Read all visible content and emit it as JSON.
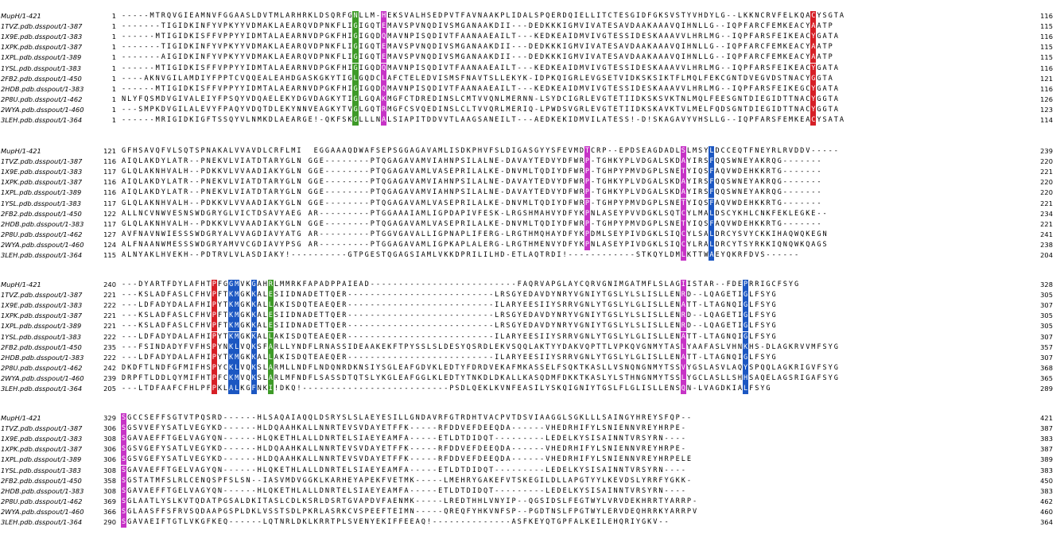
{
  "blocks": [
    {
      "rows": [
        {
          "name": "MupH/1-421",
          "start": "1",
          "end": "116",
          "seq": "-----MTRQVGIEAMNVFGGAASLDVTMLARHRKLDSQRFGNLLM-HEKSVALHSEDPVTFAVNAAKPLIDALSPQERDQIELLITCTESGIDFGKSVSTYVHDYLG--LKKNCRVFELKQACYSGTA"
        },
        {
          "name": "1TVZ.pdb.dsspout/1-387",
          "start": "1",
          "end": "115",
          "seq": "-------TIGIDKINFYVPKYYVDMAKLAEARQVDPNKFLIGIGQTEMAVSPVNQDIVSMGANAAKDII---DEDKKKIGMVIVATESAVDAAKAAAVQIHNLLG--IQPFARCFEMKEACYAATP"
        },
        {
          "name": "1X9E.pdb.dsspout/1-383",
          "start": "1",
          "end": "116",
          "seq": "------MTIGIDKISFFVPPYYIDMTALAEARNVDPGKFHIGIGQDQMAVNPISQDIVTFAANAAEAILT---KEDKEAIDMVIVGTESSIDESKAAAVVLHRLMG--IQPFARSFEIKEACYGATA"
        },
        {
          "name": "1XPK.pdb.dsspout/1-387",
          "start": "1",
          "end": "115",
          "seq": "-------TIGIDKINFYVPKYYVDMAKLAEARQVDPNKFLIGIGQTEMAVSPVNQDIVSMGANAAKDII---DEDKKKIGMVIVATESAVDAAKAAAVQIHNLLG--IQPFARCFEMKEACYAATP"
        },
        {
          "name": "1XPL.pdb.dsspout/1-389",
          "start": "1",
          "end": "115",
          "seq": "-------AIGIDKINFYVPKYYVDMAKLAEARQVDPNKFLIGIGQTEMAVSPVNQDIVSMGANAAKDII---DEDKKKIGMVIVATESAVDAAKAAAVQIHNLLG--IQPFARCFEMKEACYAATP"
        },
        {
          "name": "1YSL.pdb.dsspout/1-383",
          "start": "1",
          "end": "116",
          "seq": "------MTIGIDKISFFVPPYYIDMTALAEARNVDPGKFHIGIGQDQMAVNPISQDIVTFAANAAEAILT---KEDKEAIDMVIVGTESSIDESKAAAVVLHRLMG--IQPFARSFEIKEACYGATA"
        },
        {
          "name": "2FB2.pdb.dsspout/1-450",
          "start": "1",
          "end": "121",
          "seq": "----AKNVGILAMDIYFPPTCVQQEALEAHDGASKGKYTIGLGQDCLAFCTELEDVISMSFNAVTSLLEKYK-IDPKQIGRLEVGSETVIDKSKSIKTFLMQLFEKCGNTDVEGVDSTNACYGGTA"
        },
        {
          "name": "2HDB.pdb.dsspout/1-383",
          "start": "1",
          "end": "116",
          "seq": "------MTIGIDKISFFVPPYYIDMTALAEARNVDPGKFHIGIGQDQMAVNPISQDIVTFAANAAEAILT---KEDKEAIDMVIVGTESSIDESKAAAVVLHRLMG--IQPFARSFEIKEGCYGATA"
        },
        {
          "name": "2P8U.pdb.dsspout/1-462",
          "start": "1",
          "end": "126",
          "seq": "NLYFQSMDVGIVALEIYFPSQYVDQAELEKYDGVDAGKYTIGLGQAKMGFCTDREDINSLCMTVVQNLMERNN-LSYDCIGRLEVGTETIIDKSKSVKTNLMQLFEESGNTDIEGIDTTNACYGGTA"
        },
        {
          "name": "2WYA.pdb.dsspout/1-460",
          "start": "1",
          "end": "123",
          "seq": "---SMPKDVGILALEVYFPAQYVDQTDLEKYNNVEAGKYTVGLGQTRMGFCSVQEDINSLCLTVVQRLMERIQ-LPWDSVGRLEVGTETIIDKSKAVKTVLMELFQDSGNTDIEGIDTTNACYGGTA"
        },
        {
          "name": "3LEH.pdb.dsspout/1-364",
          "start": "1",
          "end": "114",
          "seq": "------MRIGIDKIGFTSSQYVLNMKDLAEARGE!-QKFSKGLLLNALSIAPITDDVVTLAAGSANEILT---AEDKEKIDMVILATESS!-D!SKAGAVYVHSLLG--IQPFARSFEMKEACYSATA"
        }
      ]
    },
    {
      "rows": [
        {
          "name": "MupH/1-421",
          "start": "121",
          "end": "239",
          "seq": "GFHSAVQFVLSQTSPNAKALVVAVDLCRFLMI  EGGAAAQDWAFSEPSGGAGAVAMLISDKPHVFSLDIGASGYYSFEVMDTCRP--EPDSEAGDADLSLMSYLDCCEQTFNEYRLRVDDV-----"
        },
        {
          "name": "1TVZ.pdb.dsspout/1-387",
          "start": "116",
          "end": "220",
          "seq": "AIQLAKDYLATR--PNEKVLVIATDTARYGLN GGE--------PTQGAGAVAMVIAHNPSILALNE-DAVAYTEDVYDFWRP-TGHKYPLVDGALSKDAYIRSFQQSWNEYAKRQG-------"
        },
        {
          "name": "1X9E.pdb.dsspout/1-383",
          "start": "117",
          "end": "221",
          "seq": "GLQLAKNHVALH--PDKKVLVVAADIAKYGLN GGE--------PTQGAGAVAMLVASEPRILALKE-DNVMLTQDIYDFWRP-TGHPYPMVDGPLSNETYIQSFAQVWDEHKKRTG-------"
        },
        {
          "name": "1XPK.pdb.dsspout/1-387",
          "start": "116",
          "end": "220",
          "seq": "AIQLAKDYLATR--PNEKVLVIATDTARYGLN GGE--------PTQGAGAVAMVIAHNPSILALNE-DAVAYTEDVYDFWRP-TGHKYPLVDGALSKDAYIRSFQQSWNEYAKRQG-------"
        },
        {
          "name": "1XPL.pdb.dsspout/1-389",
          "start": "116",
          "end": "220",
          "seq": "AIQLAKDYLATR--PNEKVLVIATDTARYGLN GGE--------PTQGAGAVAMVIAHNPSILALNE-DAVAYTEDVYDFWRP-TGHKYPLVDGALSKDAYIRSFQQSWNEYAKRQG-------"
        },
        {
          "name": "1YSL.pdb.dsspout/1-383",
          "start": "117",
          "end": "221",
          "seq": "GLQLAKNHVALH--PDKKVLVVAADIAKYGLN GGE--------PTQGAGAVAMLVASEPRILALKE-DNVMLTQDIYDFWRP-TGHPYPMVDGPLSNETYIQSFAQVWDEHKKRTG-------"
        },
        {
          "name": "2FB2.pdb.dsspout/1-450",
          "start": "122",
          "end": "234",
          "seq": "ALLNCVNWVESNSWDGRYGLVICTDSAVYAEG AR---------PTGGAAAIAMLIGPDAPIVFESK-LRGSHMAHVYDFYKPNLASEYPVVDGKLSQTCYLMALDSCYKHLCNKFEKLEGKE--"
        },
        {
          "name": "2HDB.pdb.dsspout/1-383",
          "start": "117",
          "end": "221",
          "seq": "GLQLAKNHVALH--PDKKVLVVAADIAKYGLN GGE--------PTQGAGAVAMLVASEPRILALKE-DNVMLTQDIYDFWRP-TGHPYPMVDGPLSNETYIQSFAQVWDEHKKRTG-------"
        },
        {
          "name": "2P8U.pdb.dsspout/1-462",
          "start": "127",
          "end": "241",
          "seq": "AVFNAVNWIESSSWDGRYALVVAGDIAVYATG AR---------PTGGVGAVALLIGPNAPLIFERG-LRGTHMQHAYDFYKPDMLSEYPIVDGKLSIQCYLSALDRCYSVYCKKIHAQWQKEGN"
        },
        {
          "name": "2WYA.pdb.dsspout/1-460",
          "start": "124",
          "end": "238",
          "seq": "ALFNAANWMESSSWDGRYAMVVCGDIAVYPSG AR---------PTGGAGAVAMLIGPKAPLALERG-LRGTHMENVYDFYKPNLASEYPIVDGKLSIQCYLRALDRCYTSYRKKIQNQWKQAGS"
        },
        {
          "name": "3LEH.pdb.dsspout/1-364",
          "start": "115",
          "end": "204",
          "seq": "ALNYAKLHVEKH--PDTRVLVLASDIAKY!----------GTPGESTQGAGSIAMLVKKDPRILILHD-ETLAQTRDI!------------STKQYLDMLKTTWAEYQKRFDVS------"
        }
      ]
    },
    {
      "rows": [
        {
          "name": "MupH/1-421",
          "start": "240",
          "end": "328",
          "seq": "---DYARTFDYLAFHTPFGGMVKGAHRLMMRKFAPADPPAIEAD--------------------------FAQRVAPGLAYCQRVGNIMGATMFLSLAGIISTAR--FDEPRRIGCFSYG"
        },
        {
          "name": "1TVZ.pdb.dsspout/1-387",
          "start": "221",
          "end": "305",
          "seq": "---KSLADFASLCFHVPFTKMGKKALESIIDNADETTQER--------------------------LRSGYEDAVDYNRYVGNIYTGSLYLSLISLLENRD--LQAGETIGLFSYG"
        },
        {
          "name": "1X9E.pdb.dsspout/1-383",
          "start": "222",
          "end": "307",
          "seq": "---LDFADYDALAFHIPYTKMGKKALLAKISDQTEAEQER--------------------------ILARYEESIIYSRRVGNLYTGSLYLGLISLLENATT-LTAGNQIGLFSYG"
        },
        {
          "name": "1XPK.pdb.dsspout/1-387",
          "start": "221",
          "end": "305",
          "seq": "---KSLADFASLCFHVPFTKMGKKALESIIDNADETTQER--------------------------LRSGYEDAVDYNRYVGNIYTGSLYLSLISLLENRD--LQAGETIGLFSYG"
        },
        {
          "name": "1XPL.pdb.dsspout/1-389",
          "start": "221",
          "end": "305",
          "seq": "---KSLADFASLCFHVPFTKMGKKALESIIDNADETTQER--------------------------LRSGYEDAVDYNRYVGNIYTGSLYLSLISLLENRD--LQAGETIGLFSYG"
        },
        {
          "name": "1YSL.pdb.dsspout/1-383",
          "start": "222",
          "end": "307",
          "seq": "---LDFADYDALAFHIPYTKMGKKALLAKISDQTEAEQER--------------------------ILARYEESIIYSRRVGNLYTGSLYLGLISLLENATT-LTAGNQIGLFSYG"
        },
        {
          "name": "2FB2.pdb.dsspout/1-450",
          "start": "235",
          "end": "357",
          "seq": "---FSINDADYFVFHSPYNKLVQKSFARLLYNDFLRNASSIDEAAKEKFTPYSSLSLDESYQSRDLEKVSQQLAKTYYDAKVQPTTLVPKQVGNMYTASLYAAFASLVHNKHS-DLAGKRVVMFSYG"
        },
        {
          "name": "2HDB.pdb.dsspout/1-383",
          "start": "222",
          "end": "307",
          "seq": "---LDFADYDALAFHIPYTKMGKKALLAKISDQTEAEQER--------------------------ILARYEESIIYSRRVGNLYTGSLYLGLISLLENATT-LTAGNQIGLFSYG"
        },
        {
          "name": "2P8U.pdb.dsspout/1-462",
          "start": "242",
          "end": "368",
          "seq": "DKDFTLNDFGFMIFHSPYCKLVQKSLARMLLNDFLNDQNRDKNSIYSGLEAFGDVKLEDTYFDRDVEKAFMKASSELFSQKTKASLLVSNQNGNMYTSSVYGSLASVLAQYSPQQLAGKRIGVFSYG"
        },
        {
          "name": "2WYA.pdb.dsspout/1-460",
          "start": "239",
          "end": "365",
          "seq": "DRPFTLDDLQYMIFHTPFCKMVQKSLARLMFNDFLSASSDTQTSLYKGLEAFGGLKLEDTYTNKDLDKALLKASQDMFDKKTKASLYLSTHNGNMYTSSLYGCLASLLSHHSAQELAGSRIGAFSYG"
        },
        {
          "name": "3LEH.pdb.dsspout/1-364",
          "start": "205",
          "end": "289",
          "seq": "---LTDFAAFCFHLPFPKLALKGFNKI!DKQ!--------------------------PSDLQEKLKVNFEASILYSKQIGNIYTGSLFLGLISLLENSQN-LVAGDKIALFSYG"
        }
      ]
    },
    {
      "rows": [
        {
          "name": "MupH/1-421",
          "start": "329",
          "end": "421",
          "seq": "SGCCSEFFSGTVTPQSRD------HLSAQAIAQQLDSRYSLSLAEYESILLGNDAVRFGTRDHTVACPVTDSVIAAGGLSGKLLLSAINGYHREYSFQP--"
        },
        {
          "name": "1TVZ.pdb.dsspout/1-387",
          "start": "306",
          "end": "387",
          "seq": "SGSVVEFYSATLVEGYKD------HLDQAAHKALLNNRTEVSVDAYETFFK-----RFDDVEFDEEQDA------VHEDRHIFYLSNIENNVREYHRPE-"
        },
        {
          "name": "1X9E.pdb.dsspout/1-383",
          "start": "308",
          "end": "383",
          "seq": "SGAVAEFFTGELVAGYQN------HLQKETHLALLDNRTELSIAEYEAMFA-----ETLDTDIDQT---------LEDELKYSISAINNTVRSYRN----"
        },
        {
          "name": "1XPK.pdb.dsspout/1-387",
          "start": "306",
          "end": "387",
          "seq": "SGSVGEFYSATLVEGYKD------HLDQAAHKALLNNRTEVSVDAYETFFK-----RFDDVEFDEEQDA------VHEDRHIFYLSNIENNVREYHRPE-"
        },
        {
          "name": "1XPL.pdb.dsspout/1-389",
          "start": "306",
          "end": "389",
          "seq": "SGSVGEFYSATLVEGYKD------HLDQAAHKALLNNRTEVSVDAYETFFK-----RFDDVEFDEEQDA------VHEDRHIFYLSNIENNVREYHRPELE"
        },
        {
          "name": "1YSL.pdb.dsspout/1-383",
          "start": "308",
          "end": "383",
          "seq": "SGAVAEFFTGELVAGYQN------HLQKETHLALLDNRTELSIAEYEAMFA-----ETLDTDIDQT---------LEDELKYSISAINNTVRSYRN----"
        },
        {
          "name": "2FB2.pdb.dsspout/1-450",
          "start": "358",
          "end": "450",
          "seq": "SGSTATMFSLRLCENQSPFSLSN--IASVMDVGGKLKARHEYAPEKFVETMK-----LMEHRYGAKEFVTSKEGILDLLAPGTYYLKEVDSLYRRFYGKK-"
        },
        {
          "name": "2HDB.pdb.dsspout/1-383",
          "start": "308",
          "end": "383",
          "seq": "SGAVAEFFTGELVAGYQN------HLQKETHLALLDNRTELSIAEYEAMFA-----ETLDTDIDQT---------LEDELKYSISAINNTVRSYRN----"
        },
        {
          "name": "2P8U.pdb.dsspout/1-462",
          "start": "369",
          "end": "462",
          "seq": "SGLAATLYSLKVTQDATPGSALDKITASLCDLKSRLDSRTGVAPDVFAENMK-----LREDTHHLVNYIP--QGSIDSLFEGTWYLVRVDEKHRRTYARRP-"
        },
        {
          "name": "2WYA.pdb.dsspout/1-460",
          "start": "366",
          "end": "460",
          "seq": "SGLAASFFSFRVSQDAAPGSPLDKLVSSTSDLPKRLASRKCVSPEEFTEIMN-----QREQFYHKVNFSP--PGDTNSLFPGTWYLERVDEQHRRKYARRPV"
        },
        {
          "name": "3LEH.pdb.dsspout/1-364",
          "start": "290",
          "end": "364",
          "seq": "SGAVAEIFTGTLVKGFKEQ------LQTNRLDKLKRRTPLSVENYEKIFFEEAQ!--------------ASFKEYQTGPFALKEILEHQRIYGKV--"
        }
      ]
    }
  ],
  "highlights": {
    "0": {
      "41": "cg",
      "46": "cm",
      "122": "cr",
      "153": "cr"
    },
    "1": {
      "32": "cb",
      "82": "cm",
      "99": "cm",
      "104": "cb"
    },
    "2": {
      "16": "cr",
      "19": "cb",
      "20": "cb",
      "23": "cb",
      "26": "cg",
      "99": "cm",
      "110": "cb"
    },
    "3": {
      "0": "cm"
    }
  },
  "colors": {
    "red": "#d61f26",
    "magenta": "#c633c6",
    "blue": "#1c57c2",
    "green": "#3e9a28"
  }
}
